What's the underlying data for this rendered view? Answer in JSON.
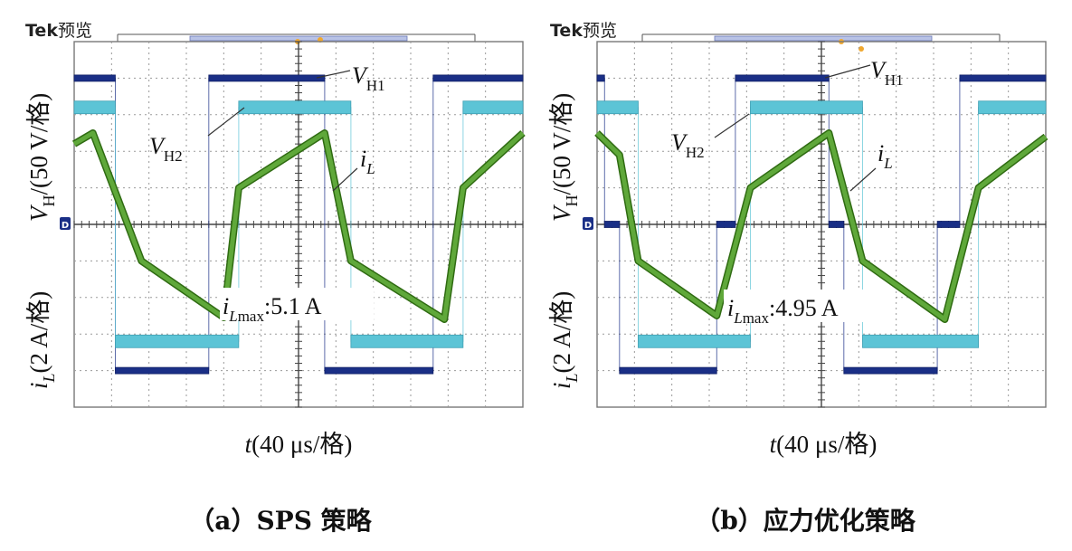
{
  "chart_data": [
    {
      "type": "line",
      "panel": "a",
      "brand": "Tek",
      "brand_suffix": "预览",
      "caption": "（a）SPS 策略",
      "xlabel_var": "t",
      "xlabel_unit": "(40 μs/格)",
      "ylabel_upper_var": "V",
      "ylabel_upper_sub": "H",
      "ylabel_upper_unit": "/(50 V/格)",
      "ylabel_lower_var": "i",
      "ylabel_lower_sub": "L",
      "ylabel_lower_unit": "(2 A/格)",
      "ground_marker": "D",
      "x_divisions": 12,
      "y_divisions": 10,
      "label_vh1": {
        "var": "V",
        "sub": "H1"
      },
      "label_vh2": {
        "var": "V",
        "sub": "H2"
      },
      "label_il": {
        "var": "i",
        "sub": "L"
      },
      "annotation": {
        "var": "i",
        "sub": "Lmax",
        "text": ":5.1 A",
        "value_A": 5.1
      },
      "series": [
        {
          "name": "VH1",
          "color": "#1a2f86",
          "unit": "div",
          "points": [
            [
              0,
              4
            ],
            [
              1.1,
              4
            ],
            [
              1.1,
              -4
            ],
            [
              3.6,
              -4
            ],
            [
              3.6,
              4
            ],
            [
              6.7,
              4
            ],
            [
              6.7,
              -4
            ],
            [
              9.6,
              -4
            ],
            [
              9.6,
              4
            ],
            [
              12,
              4
            ]
          ]
        },
        {
          "name": "VH2",
          "color": "#5cc4d6",
          "unit": "div",
          "points": [
            [
              0,
              3.2
            ],
            [
              1.1,
              3.2
            ],
            [
              1.1,
              -3.2
            ],
            [
              4.4,
              -3.2
            ],
            [
              4.4,
              3.2
            ],
            [
              7.4,
              3.2
            ],
            [
              7.4,
              -3.2
            ],
            [
              10.4,
              -3.2
            ],
            [
              10.4,
              3.2
            ],
            [
              12,
              3.2
            ]
          ]
        },
        {
          "name": "iL",
          "color": "#5fa83a",
          "unit": "div",
          "points": [
            [
              0,
              2.2
            ],
            [
              0.5,
              2.5
            ],
            [
              1.8,
              -1.0
            ],
            [
              4.0,
              -2.55
            ],
            [
              4.4,
              1.0
            ],
            [
              6.7,
              2.5
            ],
            [
              7.4,
              -1.0
            ],
            [
              9.9,
              -2.6
            ],
            [
              10.4,
              1.0
            ],
            [
              12,
              2.5
            ]
          ]
        }
      ]
    },
    {
      "type": "line",
      "panel": "b",
      "brand": "Tek",
      "brand_suffix": "预览",
      "caption": "（b）应力优化策略",
      "xlabel_var": "t",
      "xlabel_unit": "(40 μs/格)",
      "ylabel_upper_var": "V",
      "ylabel_upper_sub": "H",
      "ylabel_upper_unit": "/(50 V/格)",
      "ylabel_lower_var": "i",
      "ylabel_lower_sub": "L",
      "ylabel_lower_unit": "(2 A/格)",
      "ground_marker": "D",
      "x_divisions": 12,
      "y_divisions": 10,
      "label_vh1": {
        "var": "V",
        "sub": "H1"
      },
      "label_vh2": {
        "var": "V",
        "sub": "H2"
      },
      "label_il": {
        "var": "i",
        "sub": "L"
      },
      "annotation": {
        "var": "i",
        "sub": "Lmax",
        "text": ":4.95 A",
        "value_A": 4.95
      },
      "series": [
        {
          "name": "VH1",
          "color": "#1a2f86",
          "unit": "div",
          "points": [
            [
              0,
              4
            ],
            [
              0.2,
              4
            ],
            [
              0.2,
              0
            ],
            [
              0.6,
              0
            ],
            [
              0.6,
              -4
            ],
            [
              3.2,
              -4
            ],
            [
              3.2,
              0
            ],
            [
              3.7,
              0
            ],
            [
              3.7,
              4
            ],
            [
              6.2,
              4
            ],
            [
              6.2,
              0
            ],
            [
              6.6,
              0
            ],
            [
              6.6,
              -4
            ],
            [
              9.1,
              -4
            ],
            [
              9.1,
              0
            ],
            [
              9.7,
              0
            ],
            [
              9.7,
              4
            ],
            [
              12,
              4
            ]
          ]
        },
        {
          "name": "VH2",
          "color": "#5cc4d6",
          "unit": "div",
          "points": [
            [
              0,
              3.2
            ],
            [
              1.1,
              3.2
            ],
            [
              1.1,
              -3.2
            ],
            [
              4.1,
              -3.2
            ],
            [
              4.1,
              3.2
            ],
            [
              7.1,
              3.2
            ],
            [
              7.1,
              -3.2
            ],
            [
              10.2,
              -3.2
            ],
            [
              10.2,
              3.2
            ],
            [
              12,
              3.2
            ]
          ]
        },
        {
          "name": "iL",
          "color": "#5fa83a",
          "unit": "div",
          "points": [
            [
              0,
              2.5
            ],
            [
              0.6,
              1.9
            ],
            [
              1.1,
              -1.0
            ],
            [
              3.2,
              -2.5
            ],
            [
              4.1,
              1.0
            ],
            [
              6.2,
              2.5
            ],
            [
              7.1,
              -1.0
            ],
            [
              9.3,
              -2.6
            ],
            [
              10.2,
              1.0
            ],
            [
              12,
              2.4
            ]
          ]
        }
      ]
    }
  ]
}
